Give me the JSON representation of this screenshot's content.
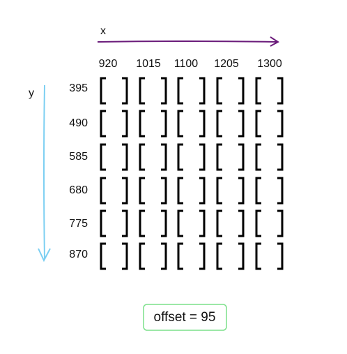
{
  "axes": {
    "x_label": "x",
    "y_label": "y"
  },
  "x_labels": [
    920,
    1015,
    1100,
    1205,
    1300
  ],
  "y_labels": [
    395,
    490,
    585,
    680,
    775,
    870
  ],
  "offset": "offset = 95"
}
